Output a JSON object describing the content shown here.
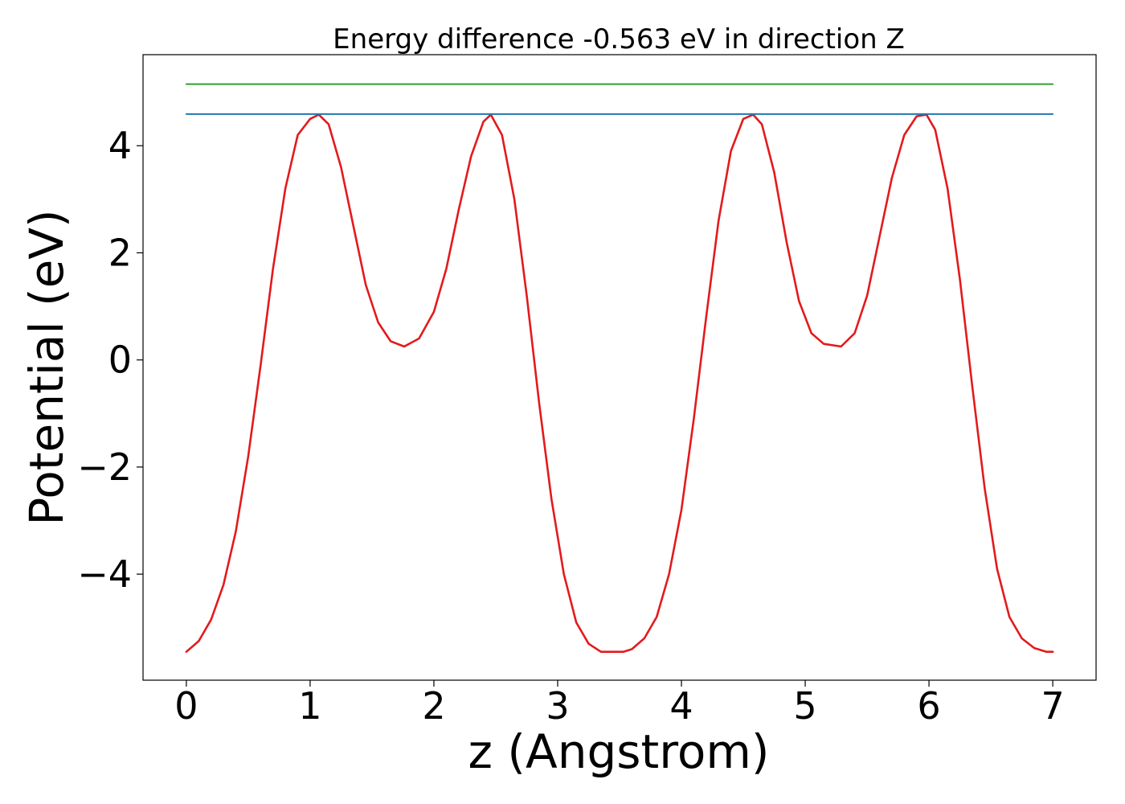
{
  "chart_data": {
    "type": "line",
    "title": "Energy difference -0.563 eV in direction Z",
    "xlabel": "z (Angstrom)",
    "ylabel": "Potential (eV)",
    "xlim": [
      -0.35,
      7.35
    ],
    "ylim": [
      -5.98,
      5.7
    ],
    "x_ticks": [
      0,
      1,
      2,
      3,
      4,
      5,
      6,
      7
    ],
    "x_tick_labels": [
      "0",
      "1",
      "2",
      "3",
      "4",
      "5",
      "6",
      "7"
    ],
    "y_ticks": [
      -4,
      -2,
      0,
      2,
      4
    ],
    "y_tick_labels": [
      "−4",
      "−2",
      "0",
      "2",
      "4"
    ],
    "grid": false,
    "series": [
      {
        "color": "#e31a1c",
        "x": [
          0,
          0.1,
          0.2,
          0.3,
          0.4,
          0.5,
          0.6,
          0.7,
          0.8,
          0.9,
          1.0,
          1.07,
          1.15,
          1.25,
          1.35,
          1.45,
          1.55,
          1.65,
          1.76,
          1.88,
          2.0,
          2.1,
          2.2,
          2.3,
          2.4,
          2.46,
          2.55,
          2.65,
          2.75,
          2.85,
          2.95,
          3.05,
          3.15,
          3.25,
          3.35,
          3.45,
          3.53,
          3.6,
          3.7,
          3.8,
          3.9,
          4.0,
          4.1,
          4.2,
          4.3,
          4.4,
          4.5,
          4.58,
          4.65,
          4.75,
          4.85,
          4.95,
          5.05,
          5.15,
          5.29,
          5.4,
          5.5,
          5.6,
          5.7,
          5.8,
          5.9,
          5.98,
          6.05,
          6.15,
          6.25,
          6.35,
          6.45,
          6.55,
          6.65,
          6.75,
          6.85,
          6.95,
          7.0
        ],
        "y": [
          -5.45,
          -5.25,
          -4.85,
          -4.2,
          -3.2,
          -1.8,
          -0.1,
          1.7,
          3.2,
          4.2,
          4.5,
          4.58,
          4.4,
          3.6,
          2.5,
          1.4,
          0.7,
          0.35,
          0.25,
          0.4,
          0.9,
          1.7,
          2.8,
          3.8,
          4.45,
          4.58,
          4.2,
          3.0,
          1.2,
          -0.8,
          -2.6,
          -4.0,
          -4.9,
          -5.3,
          -5.45,
          -5.45,
          -5.45,
          -5.4,
          -5.2,
          -4.8,
          -4.0,
          -2.8,
          -1.1,
          0.8,
          2.6,
          3.9,
          4.5,
          4.58,
          4.4,
          3.5,
          2.2,
          1.1,
          0.5,
          0.3,
          0.25,
          0.5,
          1.2,
          2.3,
          3.4,
          4.2,
          4.55,
          4.58,
          4.3,
          3.2,
          1.5,
          -0.5,
          -2.4,
          -3.9,
          -4.8,
          -5.2,
          -5.38,
          -5.45,
          -5.45
        ]
      },
      {
        "color": "#1f78b4",
        "x": [
          0,
          7
        ],
        "y": [
          4.59,
          4.59
        ]
      },
      {
        "color": "#33a02c",
        "x": [
          0,
          7
        ],
        "y": [
          5.15,
          5.15
        ]
      }
    ]
  }
}
